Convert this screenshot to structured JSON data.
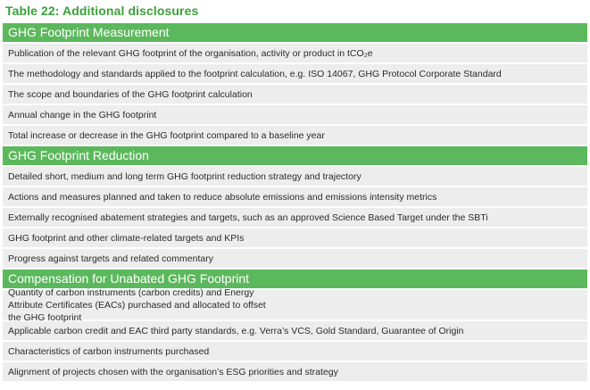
{
  "title": "Table 22: Additional disclosures",
  "sections": [
    {
      "header": "GHG Footprint Measurement",
      "rows": [
        {
          "text": "Publication of the relevant GHG footprint of the organisation, activity or product in tCO₂e"
        },
        {
          "text": "The methodology and standards applied to the footprint calculation, e.g. ISO 14067, GHG Protocol Corporate Standard"
        },
        {
          "text": "The scope and boundaries of the GHG footprint calculation"
        },
        {
          "text": "Annual change in the GHG footprint"
        },
        {
          "text": "Total increase or decrease in the GHG footprint compared to a baseline year"
        }
      ]
    },
    {
      "header": "GHG Footprint Reduction",
      "rows": [
        {
          "text": "Detailed short, medium and long term GHG footprint reduction strategy and trajectory"
        },
        {
          "text": "Actions and measures planned and taken to reduce absolute emissions and emissions intensity metrics"
        },
        {
          "text": "Externally recognised abatement strategies and targets, such as an approved Science Based Target under the SBTi"
        },
        {
          "text": "GHG footprint and other climate-related targets and KPIs"
        },
        {
          "text": "Progress against targets and related commentary"
        }
      ]
    },
    {
      "header": "Compensation for Unabated GHG Footprint",
      "rows": [
        {
          "text": "Quantity of carbon instruments (carbon credits) and Energy Attribute Certificates (EACs) purchased and allocated to offset the GHG footprint"
        },
        {
          "text": "Applicable carbon credit and EAC third party standards, e.g. Verra’s VCS, Gold Standard, Guarantee of Origin"
        },
        {
          "text": "Characteristics of carbon instruments purchased"
        },
        {
          "text": "Alignment of projects chosen with the organisation’s ESG priorities and strategy"
        }
      ]
    }
  ]
}
